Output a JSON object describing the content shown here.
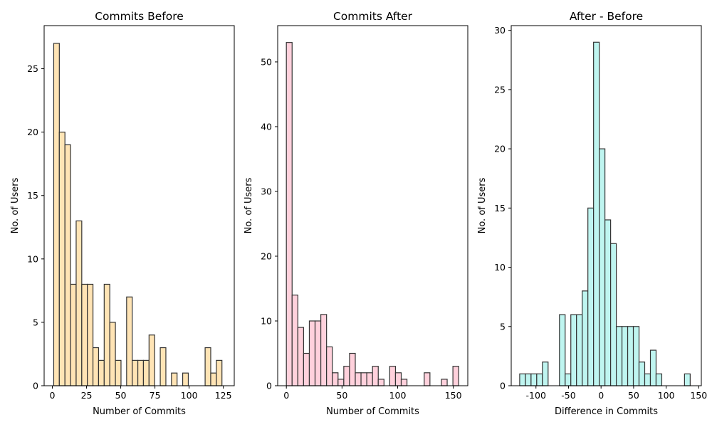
{
  "figure": {
    "background": "#ffffff",
    "edge_color": "#333333"
  },
  "chart_data": [
    {
      "type": "bar",
      "title": "Commits Before",
      "xlabel": "Number of Commits",
      "ylabel": "No. of Users",
      "color": "#ffe4b5",
      "xlim": [
        -6,
        133
      ],
      "ylim": [
        0,
        28.4
      ],
      "xticks": [
        0,
        25,
        50,
        75,
        100,
        125
      ],
      "yticks": [
        0,
        5,
        10,
        15,
        20,
        25
      ],
      "bin_start": 1,
      "bin_width": 4.1,
      "values": [
        27,
        20,
        19,
        8,
        13,
        8,
        8,
        3,
        2,
        8,
        5,
        2,
        0,
        7,
        2,
        2,
        2,
        4,
        0,
        3,
        0,
        1,
        0,
        1,
        0,
        0,
        0,
        3,
        1,
        2
      ]
    },
    {
      "type": "bar",
      "title": "Commits After",
      "xlabel": "Number of Commits",
      "ylabel": "No. of Users",
      "color": "#ffd1dc",
      "xlim": [
        -7.8,
        163
      ],
      "ylim": [
        0,
        55.6
      ],
      "xticks": [
        0,
        50,
        100,
        150
      ],
      "yticks": [
        0,
        10,
        20,
        30,
        40,
        50
      ],
      "bin_start": 0,
      "bin_width": 5.16,
      "values": [
        53,
        14,
        9,
        5,
        10,
        10,
        11,
        6,
        2,
        1,
        3,
        5,
        2,
        2,
        2,
        3,
        1,
        0,
        3,
        2,
        1,
        0,
        0,
        0,
        2,
        0,
        0,
        1,
        0,
        3
      ]
    },
    {
      "type": "bar",
      "title": "After - Before",
      "xlabel": "Difference in Commits",
      "ylabel": "No. of Users",
      "color": "#bff5f0",
      "xlim": [
        -138,
        154
      ],
      "ylim": [
        0,
        30.4
      ],
      "xticks": [
        -100,
        -50,
        0,
        50,
        100,
        150
      ],
      "yticks": [
        0,
        5,
        10,
        15,
        20,
        25,
        30
      ],
      "bin_start": -125,
      "bin_width": 8.73,
      "values": [
        1,
        1,
        1,
        1,
        2,
        0,
        0,
        6,
        1,
        6,
        6,
        8,
        15,
        29,
        20,
        14,
        12,
        5,
        5,
        5,
        5,
        2,
        1,
        3,
        1,
        0,
        0,
        0,
        0,
        1
      ]
    }
  ]
}
